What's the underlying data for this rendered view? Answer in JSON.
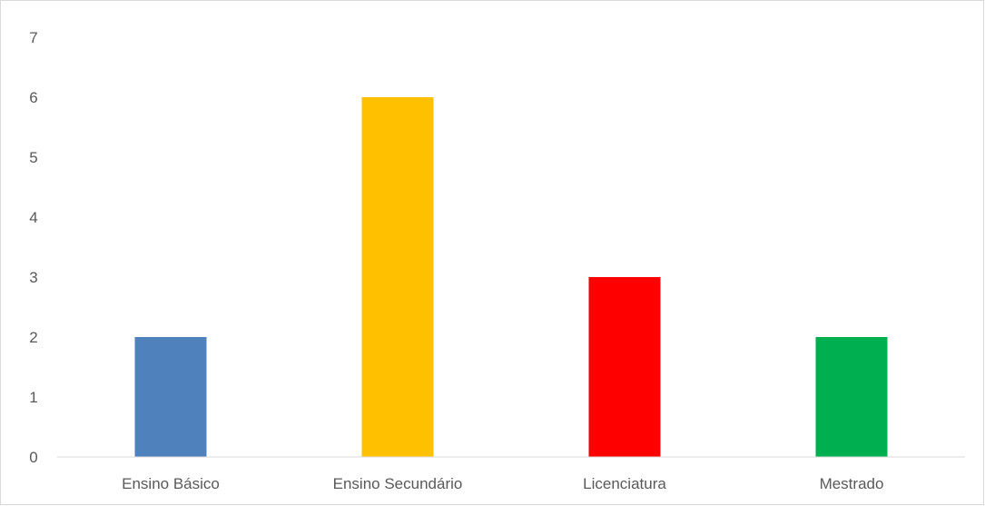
{
  "chart_data": {
    "type": "bar",
    "title": "",
    "xlabel": "",
    "ylabel": "",
    "categories": [
      "Ensino Básico",
      "Ensino Secundário",
      "Licenciatura",
      "Mestrado"
    ],
    "values": [
      2,
      6,
      3,
      2
    ],
    "colors": [
      "#4f81bd",
      "#ffc000",
      "#ff0000",
      "#00b050"
    ],
    "ylim": [
      0,
      7
    ],
    "yticks": [
      0,
      1,
      2,
      3,
      4,
      5,
      6,
      7
    ],
    "grid": false,
    "legend": "none"
  }
}
